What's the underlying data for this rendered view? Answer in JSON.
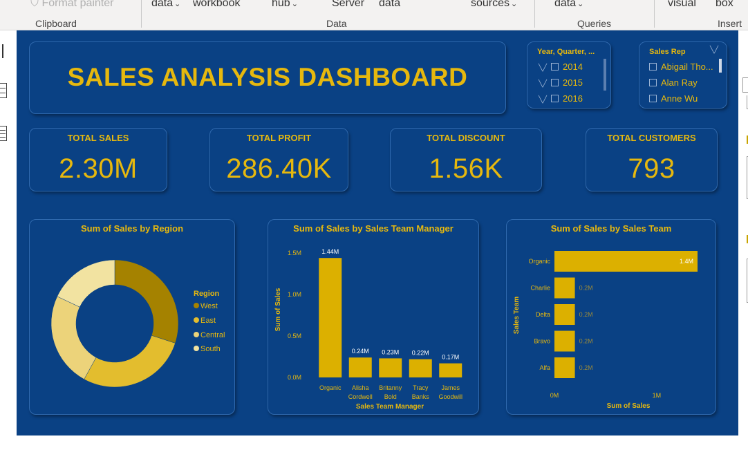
{
  "ribbon": {
    "items": [
      {
        "label": "Format painter",
        "faded": true
      },
      {
        "label": "data",
        "chevron": true
      },
      {
        "label": "workbook",
        "chevron": false
      },
      {
        "label": "hub",
        "chevron": true
      },
      {
        "label": "Server",
        "chevron": false
      },
      {
        "label": "data",
        "chevron": false
      },
      {
        "label": "sources",
        "chevron": true
      },
      {
        "label": "data",
        "chevron": true
      },
      {
        "label": "visual",
        "chevron": false
      },
      {
        "label": "box",
        "chevron": false
      }
    ],
    "groups": [
      "Clipboard",
      "Data",
      "Queries",
      "Insert"
    ]
  },
  "dashboard": {
    "title": "SALES ANALYSIS DASHBOARD",
    "slicer_year": {
      "header": "Year, Quarter, ...",
      "items": [
        "2014",
        "2015",
        "2016"
      ]
    },
    "slicer_rep": {
      "header": "Sales Rep",
      "items": [
        "Abigail Tho...",
        "Alan Ray",
        "Anne Wu"
      ]
    },
    "kpis": [
      {
        "label": "TOTAL SALES",
        "value": "2.30M"
      },
      {
        "label": "TOTAL PROFIT",
        "value": "286.40K"
      },
      {
        "label": "TOTAL DISCOUNT",
        "value": "1.56K"
      },
      {
        "label": "TOTAL CUSTOMERS",
        "value": "793"
      }
    ]
  },
  "colors": {
    "canvas": "#0a4184",
    "gold": "#e6b80e",
    "bar": "#dcb000"
  },
  "chart_data": [
    {
      "type": "pie",
      "title": "Sum of Sales by Region",
      "legend_title": "Region",
      "legend_position": "right",
      "categories": [
        "West",
        "East",
        "Central",
        "South"
      ],
      "values": [
        30,
        28,
        24,
        18
      ],
      "colors": [
        "#a58200",
        "#e3bd2e",
        "#ecd37a",
        "#f2e3a1"
      ]
    },
    {
      "type": "bar",
      "title": "Sum of Sales by Sales Team Manager",
      "xlabel": "Sales Team Manager",
      "ylabel": "Sum of Sales",
      "categories": [
        "Organic",
        "Alisha Cordwell",
        "Britanny Bold",
        "Tracy Banks",
        "James Goodwill"
      ],
      "values": [
        1.44,
        0.24,
        0.23,
        0.22,
        0.17
      ],
      "data_labels": [
        "1.44M",
        "0.24M",
        "0.23M",
        "0.22M",
        "0.17M"
      ],
      "ylim": [
        0,
        1.5
      ],
      "yticks": [
        0,
        0.5,
        1.0,
        1.5
      ],
      "ytick_labels": [
        "0.0M",
        "0.5M",
        "1.0M",
        "1.5M"
      ]
    },
    {
      "type": "bar",
      "orientation": "horizontal",
      "title": "Sum of Sales by Sales Team",
      "xlabel": "Sum of Sales",
      "ylabel": "Sales Team",
      "categories": [
        "Organic",
        "Charlie",
        "Delta",
        "Bravo",
        "Alfa"
      ],
      "values": [
        1.4,
        0.2,
        0.2,
        0.2,
        0.2
      ],
      "data_labels": [
        "1.4M",
        "0.2M",
        "0.2M",
        "0.2M",
        "0.2M"
      ],
      "xlim": [
        0,
        1.4
      ],
      "xticks": [
        0,
        1
      ],
      "xtick_labels": [
        "0M",
        "1M"
      ]
    }
  ]
}
